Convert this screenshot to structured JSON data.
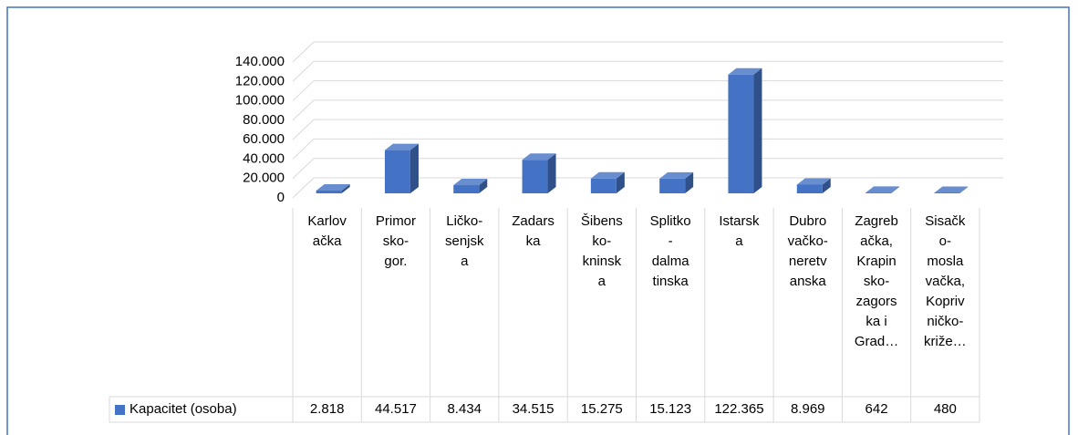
{
  "chart_data": {
    "type": "bar3d",
    "categories": [
      [
        "Karlov",
        "ačka"
      ],
      [
        "Primor",
        "sko-",
        "gor."
      ],
      [
        "Ličko-",
        "senjsk",
        "a"
      ],
      [
        "Zadars",
        "ka"
      ],
      [
        "Šibens",
        "ko-",
        "kninsk",
        "a"
      ],
      [
        "Splitko",
        "-",
        "dalma",
        "tinska"
      ],
      [
        "Istarsk",
        "a"
      ],
      [
        "Dubro",
        "vačko-",
        "neretv",
        "anska"
      ],
      [
        "Zagreb",
        "ačka,",
        "Krapin",
        "sko-",
        "zagors",
        "ka i",
        "Grad…"
      ],
      [
        "Sisačk",
        "o-",
        "mosla",
        "vačka,",
        "Kopriv",
        "ničko-",
        "križe…"
      ]
    ],
    "series": [
      {
        "name": "Kapacitet (osoba)",
        "color": "#4472c4",
        "values": [
          2818,
          44517,
          8434,
          34515,
          15275,
          15123,
          122365,
          8969,
          642,
          480
        ],
        "value_labels": [
          "2.818",
          "44.517",
          "8.434",
          "34.515",
          "15.275",
          "15.123",
          "122.365",
          "8.969",
          "642",
          "480"
        ]
      }
    ],
    "ylim": [
      0,
      140000
    ],
    "yticks": [
      0,
      {
        "value": 20000,
        "label": "20.000"
      },
      {
        "value": 40000,
        "label": "40.000"
      },
      {
        "value": 60000,
        "label": "60.000"
      },
      {
        "value": 80000,
        "label": "80.000"
      },
      {
        "value": 100000,
        "label": "100.000"
      },
      {
        "value": 120000,
        "label": "120.000"
      },
      {
        "value": 140000,
        "label": "140.000"
      }
    ],
    "grid": true
  }
}
